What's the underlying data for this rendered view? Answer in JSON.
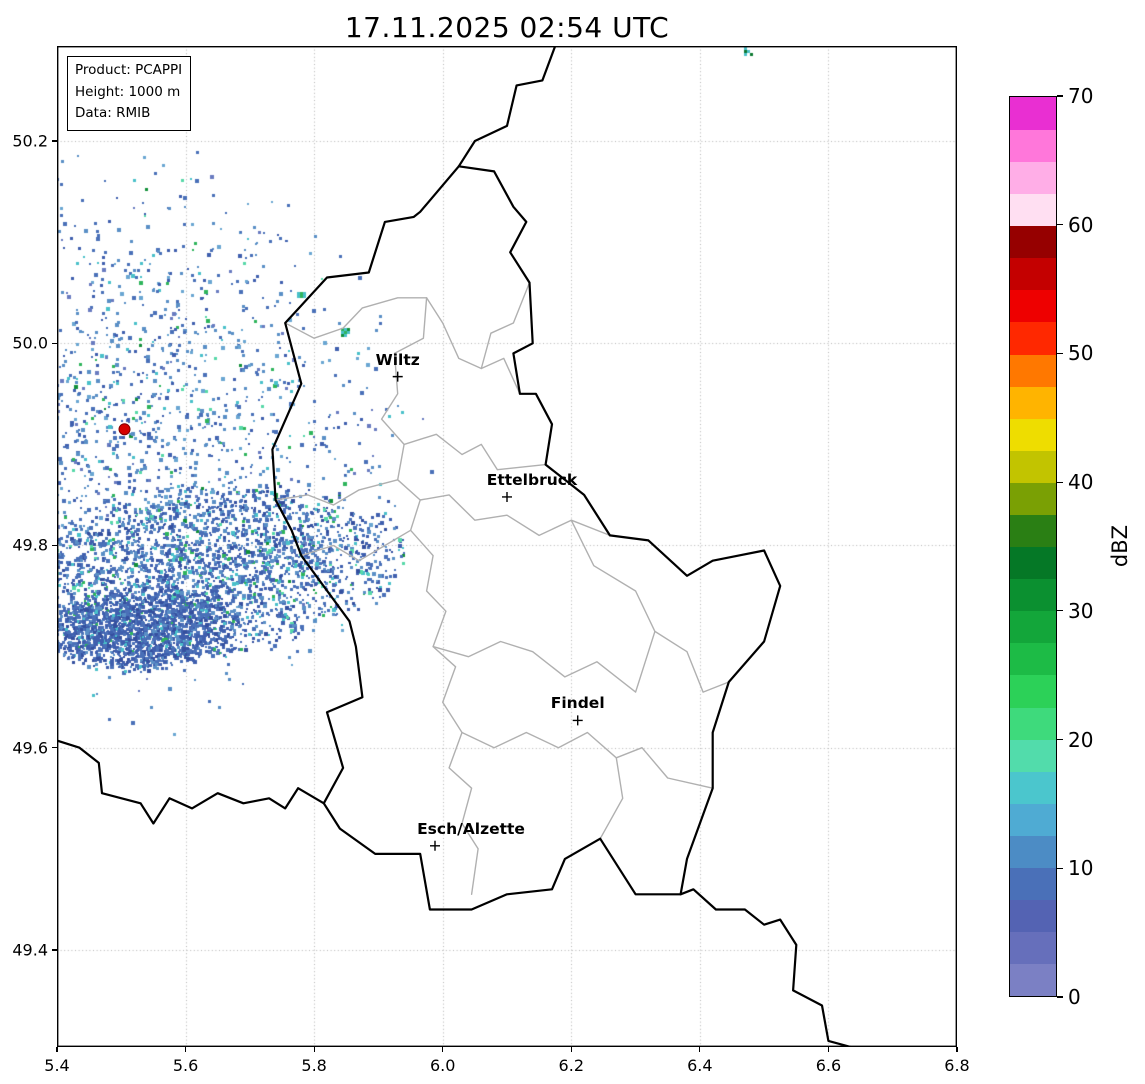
{
  "chart_data": {
    "type": "heatmap",
    "subtype": "weather-radar-reflectivity-map",
    "title": "17.11.2025 02:54 UTC",
    "product_info": [
      "Product: PCAPPI",
      "Height: 1000 m",
      "Data: RMIB"
    ],
    "xlabel": "",
    "ylabel": "",
    "axes": {
      "lon_min": 5.4,
      "lon_max": 6.8,
      "lat_min": 49.304,
      "lat_max": 50.294,
      "x_ticks": [
        5.4,
        5.6,
        5.8,
        6.0,
        6.2,
        6.4,
        6.6,
        6.8
      ],
      "y_ticks": [
        49.4,
        49.6,
        49.8,
        50.0,
        50.2
      ],
      "grid": true
    },
    "colorbar": {
      "label": "dBZ",
      "min": 0,
      "max": 70,
      "ticks": [
        0,
        10,
        20,
        30,
        40,
        50,
        60,
        70
      ],
      "segment_dbz_step": 2.5,
      "colors_bottom_to_top": [
        "#7b80c4",
        "#666fbb",
        "#5463b3",
        "#4a70b8",
        "#4c8cc5",
        "#4fabd3",
        "#4bc6cd",
        "#52dcab",
        "#3eda7c",
        "#2cd158",
        "#1dbb46",
        "#13a63a",
        "#0b9030",
        "#057826",
        "#2a7f14",
        "#7aa004",
        "#c2c400",
        "#eedd00",
        "#ffb400",
        "#ff7800",
        "#ff2800",
        "#ee0000",
        "#c40000",
        "#960000",
        "#ffdff2",
        "#ffaee7",
        "#ff77da",
        "#e92fd2"
      ]
    },
    "cities": [
      {
        "name": "Wiltz",
        "lon": 5.93,
        "lat": 49.967,
        "label_dx": 0
      },
      {
        "name": "Ettelbruck",
        "lon": 6.1,
        "lat": 49.848,
        "label_dx": 25
      },
      {
        "name": "Findel",
        "lon": 6.21,
        "lat": 49.627,
        "label_dx": 0
      },
      {
        "name": "Esch/Alzette",
        "lon": 5.988,
        "lat": 49.503,
        "label_dx": 36
      }
    ],
    "radar_site": {
      "name": "radar-site",
      "lon": 5.505,
      "lat": 49.915,
      "color": "#d60000"
    },
    "map": {
      "national_border_color": "#000000",
      "district_border_color": "#b0b0b0",
      "borders_national": [
        [
          [
            6.025,
            50.175
          ],
          [
            5.965,
            50.13
          ],
          [
            5.955,
            50.125
          ],
          [
            5.91,
            50.12
          ],
          [
            5.885,
            50.07
          ],
          [
            5.82,
            50.065
          ],
          [
            5.755,
            50.02
          ],
          [
            5.78,
            49.96
          ],
          [
            5.735,
            49.895
          ],
          [
            5.74,
            49.845
          ],
          [
            5.765,
            49.815
          ],
          [
            5.78,
            49.79
          ],
          [
            5.855,
            49.725
          ],
          [
            5.865,
            49.7
          ],
          [
            5.875,
            49.65
          ],
          [
            5.82,
            49.635
          ],
          [
            5.845,
            49.58
          ],
          [
            5.815,
            49.545
          ],
          [
            5.84,
            49.52
          ],
          [
            5.895,
            49.495
          ],
          [
            5.965,
            49.495
          ],
          [
            5.98,
            49.44
          ],
          [
            6.045,
            49.44
          ],
          [
            6.1,
            49.455
          ],
          [
            6.17,
            49.46
          ],
          [
            6.19,
            49.49
          ],
          [
            6.245,
            49.51
          ],
          [
            6.3,
            49.455
          ],
          [
            6.37,
            49.455
          ],
          [
            6.38,
            49.49
          ],
          [
            6.42,
            49.56
          ],
          [
            6.42,
            49.615
          ],
          [
            6.445,
            49.665
          ],
          [
            6.5,
            49.705
          ],
          [
            6.525,
            49.76
          ],
          [
            6.5,
            49.795
          ],
          [
            6.42,
            49.785
          ],
          [
            6.38,
            49.77
          ],
          [
            6.32,
            49.805
          ],
          [
            6.26,
            49.81
          ],
          [
            6.22,
            49.85
          ],
          [
            6.19,
            49.865
          ],
          [
            6.16,
            49.88
          ],
          [
            6.17,
            49.92
          ],
          [
            6.145,
            49.95
          ],
          [
            6.12,
            49.95
          ],
          [
            6.11,
            49.99
          ],
          [
            6.14,
            50.0
          ],
          [
            6.135,
            50.06
          ],
          [
            6.105,
            50.09
          ],
          [
            6.13,
            50.12
          ],
          [
            6.11,
            50.135
          ],
          [
            6.08,
            50.17
          ],
          [
            6.025,
            50.175
          ]
        ],
        [
          [
            6.025,
            50.175
          ],
          [
            6.05,
            50.2
          ],
          [
            6.1,
            50.215
          ],
          [
            6.115,
            50.255
          ],
          [
            6.155,
            50.26
          ],
          [
            6.175,
            50.294
          ]
        ],
        [
          [
            5.4,
            49.607
          ],
          [
            5.435,
            49.6
          ],
          [
            5.465,
            49.585
          ],
          [
            5.47,
            49.555
          ],
          [
            5.53,
            49.545
          ],
          [
            5.55,
            49.525
          ],
          [
            5.575,
            49.55
          ],
          [
            5.61,
            49.54
          ],
          [
            5.65,
            49.555
          ],
          [
            5.69,
            49.545
          ],
          [
            5.73,
            49.55
          ],
          [
            5.755,
            49.54
          ],
          [
            5.775,
            49.56
          ],
          [
            5.815,
            49.545
          ]
        ],
        [
          [
            6.37,
            49.455
          ],
          [
            6.39,
            49.46
          ],
          [
            6.425,
            49.44
          ],
          [
            6.47,
            49.44
          ],
          [
            6.5,
            49.425
          ],
          [
            6.525,
            49.43
          ],
          [
            6.55,
            49.405
          ],
          [
            6.545,
            49.36
          ],
          [
            6.59,
            49.345
          ],
          [
            6.6,
            49.31
          ],
          [
            6.635,
            49.304
          ]
        ]
      ],
      "borders_district": [
        [
          [
            5.755,
            50.02
          ],
          [
            5.8,
            50.005
          ],
          [
            5.845,
            50.015
          ],
          [
            5.875,
            50.035
          ],
          [
            5.93,
            50.045
          ],
          [
            5.975,
            50.045
          ],
          [
            6.0,
            50.02
          ],
          [
            6.025,
            49.985
          ],
          [
            6.06,
            49.975
          ],
          [
            6.095,
            49.985
          ],
          [
            6.12,
            49.95
          ]
        ],
        [
          [
            5.975,
            50.045
          ],
          [
            5.97,
            50.005
          ],
          [
            5.925,
            49.99
          ],
          [
            5.93,
            49.95
          ],
          [
            5.905,
            49.925
          ],
          [
            5.94,
            49.9
          ],
          [
            5.93,
            49.865
          ],
          [
            5.965,
            49.845
          ],
          [
            5.95,
            49.815
          ],
          [
            5.985,
            49.79
          ],
          [
            5.975,
            49.755
          ],
          [
            6.005,
            49.735
          ],
          [
            5.985,
            49.7
          ],
          [
            6.02,
            49.68
          ],
          [
            6.0,
            49.645
          ],
          [
            6.03,
            49.615
          ],
          [
            6.01,
            49.58
          ],
          [
            6.045,
            49.56
          ],
          [
            6.03,
            49.525
          ],
          [
            6.055,
            49.5
          ],
          [
            6.045,
            49.455
          ]
        ],
        [
          [
            5.78,
            49.79
          ],
          [
            5.83,
            49.8
          ],
          [
            5.87,
            49.785
          ],
          [
            5.91,
            49.8
          ],
          [
            5.95,
            49.815
          ]
        ],
        [
          [
            5.965,
            49.845
          ],
          [
            6.01,
            49.85
          ],
          [
            6.05,
            49.825
          ],
          [
            6.1,
            49.83
          ],
          [
            6.15,
            49.81
          ],
          [
            6.2,
            49.825
          ],
          [
            6.26,
            49.81
          ]
        ],
        [
          [
            6.2,
            49.825
          ],
          [
            6.235,
            49.78
          ],
          [
            6.3,
            49.755
          ],
          [
            6.33,
            49.715
          ],
          [
            6.38,
            49.695
          ],
          [
            6.405,
            49.655
          ],
          [
            6.445,
            49.665
          ]
        ],
        [
          [
            5.985,
            49.7
          ],
          [
            6.04,
            49.69
          ],
          [
            6.09,
            49.705
          ],
          [
            6.14,
            49.695
          ],
          [
            6.19,
            49.67
          ],
          [
            6.24,
            49.685
          ],
          [
            6.3,
            49.655
          ],
          [
            6.33,
            49.715
          ]
        ],
        [
          [
            6.03,
            49.615
          ],
          [
            6.08,
            49.6
          ],
          [
            6.13,
            49.615
          ],
          [
            6.18,
            49.6
          ],
          [
            6.225,
            49.615
          ],
          [
            6.27,
            49.59
          ],
          [
            6.31,
            49.6
          ],
          [
            6.35,
            49.57
          ],
          [
            6.42,
            49.56
          ]
        ],
        [
          [
            6.27,
            49.59
          ],
          [
            6.28,
            49.55
          ],
          [
            6.245,
            49.51
          ]
        ],
        [
          [
            6.06,
            49.975
          ],
          [
            6.075,
            50.01
          ],
          [
            6.11,
            50.02
          ],
          [
            6.135,
            50.06
          ]
        ],
        [
          [
            5.94,
            49.9
          ],
          [
            5.99,
            49.91
          ],
          [
            6.03,
            49.89
          ],
          [
            6.06,
            49.9
          ],
          [
            6.085,
            49.875
          ],
          [
            6.16,
            49.88
          ]
        ],
        [
          [
            5.74,
            49.845
          ],
          [
            5.79,
            49.85
          ],
          [
            5.83,
            49.84
          ],
          [
            5.87,
            49.855
          ],
          [
            5.93,
            49.865
          ]
        ]
      ]
    },
    "echoes": {
      "description": "Light stratiform precipitation echoes (mostly 0-15 dBZ) west of Luxembourg around the radar site; densest band near 49.7-49.8N between 5.4-5.95E",
      "seed": 425417,
      "layers": [
        {
          "name": "scatter-field",
          "center": [
            5.52,
            49.905
          ],
          "rx_deg": 0.47,
          "ry_deg": 0.3,
          "rot_deg": 0,
          "count": 6500,
          "falloff": 1.25,
          "palette": [
            {
              "c": "#4a70b8",
              "w": 0.3
            },
            {
              "c": "#5a8fc6",
              "w": 0.28
            },
            {
              "c": "#3f5fae",
              "w": 0.14
            },
            {
              "c": "#6aa6d2",
              "w": 0.1
            },
            {
              "c": "#697bc0",
              "w": 0.07
            },
            {
              "c": "#49c0ca",
              "w": 0.06
            },
            {
              "c": "#57d8a8",
              "w": 0.02
            },
            {
              "c": "#2fb45c",
              "w": 0.02
            },
            {
              "c": "#12903a",
              "w": 0.01
            }
          ]
        },
        {
          "name": "dense-band",
          "center": [
            5.62,
            49.775
          ],
          "rx_deg": 0.33,
          "ry_deg": 0.088,
          "rot_deg": -6,
          "count": 5200,
          "falloff": 0.6,
          "palette": [
            {
              "c": "#4a70b8",
              "w": 0.33
            },
            {
              "c": "#3f5fae",
              "w": 0.22
            },
            {
              "c": "#5a8fc6",
              "w": 0.22
            },
            {
              "c": "#35509f",
              "w": 0.09
            },
            {
              "c": "#49c0ca",
              "w": 0.07
            },
            {
              "c": "#57d8a8",
              "w": 0.03
            },
            {
              "c": "#2fb45c",
              "w": 0.03
            },
            {
              "c": "#12903a",
              "w": 0.01
            }
          ]
        },
        {
          "name": "core-blob",
          "center": [
            5.53,
            49.718
          ],
          "rx_deg": 0.155,
          "ry_deg": 0.042,
          "rot_deg": -4,
          "count": 2600,
          "falloff": 0.4,
          "palette": [
            {
              "c": "#3f5fae",
              "w": 0.34
            },
            {
              "c": "#4a70b8",
              "w": 0.3
            },
            {
              "c": "#35509f",
              "w": 0.18
            },
            {
              "c": "#5a8fc6",
              "w": 0.12
            },
            {
              "c": "#49c0ca",
              "w": 0.04
            },
            {
              "c": "#2fb45c",
              "w": 0.02
            }
          ]
        }
      ],
      "fixed_blobs": [
        {
          "lon": 5.778,
          "lat": 50.048,
          "colors": [
            "#49c0ca",
            "#2fb45c",
            "#49c0ca"
          ]
        },
        {
          "lon": 5.846,
          "lat": 50.012,
          "colors": [
            "#2fb45c",
            "#49c0ca",
            "#12903a",
            "#49c0ca"
          ]
        },
        {
          "lon": 6.474,
          "lat": 50.29,
          "colors": [
            "#49c0ca",
            "#0d7a30",
            "#49c0ca"
          ]
        }
      ]
    }
  }
}
